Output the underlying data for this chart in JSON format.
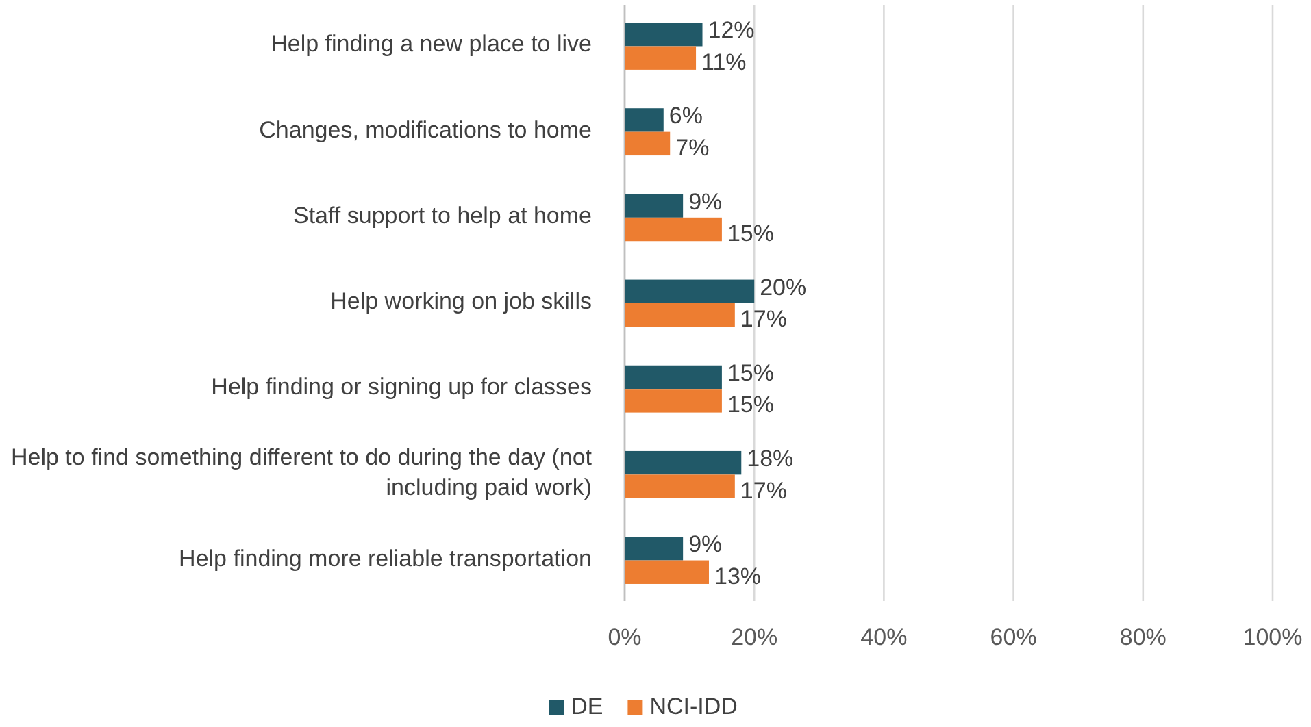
{
  "chart_data": {
    "type": "bar",
    "orientation": "horizontal",
    "categories": [
      "Help finding a new place to live",
      "Changes, modifications to home",
      "Staff support to help at home",
      "Help working on job skills",
      "Help finding or signing up for classes",
      "Help to find something different to do during the day (not including paid work)",
      "Help finding more reliable transportation"
    ],
    "series": [
      {
        "name": "DE",
        "color": "#215968",
        "values": [
          12,
          6,
          9,
          20,
          15,
          18,
          9
        ],
        "value_labels": [
          "12%",
          "6%",
          "9%",
          "20%",
          "15%",
          "18%",
          "9%"
        ]
      },
      {
        "name": "NCI-IDD",
        "color": "#ed7d31",
        "values": [
          11,
          7,
          15,
          17,
          15,
          17,
          13
        ],
        "value_labels": [
          "11%",
          "7%",
          "15%",
          "17%",
          "15%",
          "17%",
          "13%"
        ]
      }
    ],
    "xlim": [
      0,
      100
    ],
    "xticks": [
      {
        "value": 0,
        "label": "0%"
      },
      {
        "value": 20,
        "label": "20%"
      },
      {
        "value": 40,
        "label": "40%"
      },
      {
        "value": 60,
        "label": "60%"
      },
      {
        "value": 80,
        "label": "80%"
      },
      {
        "value": 100,
        "label": "100%"
      }
    ],
    "grid": "x",
    "legend": "bottom"
  }
}
